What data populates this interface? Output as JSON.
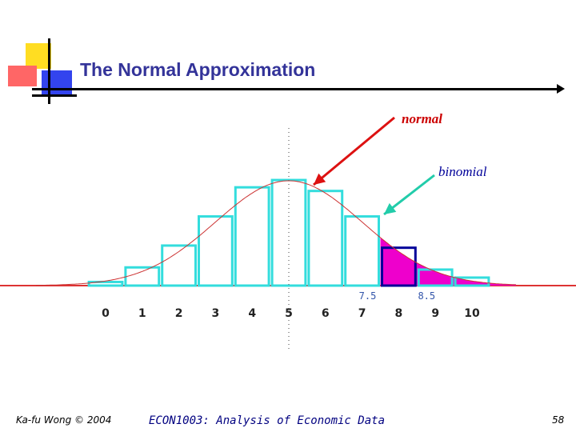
{
  "slide": {
    "title": "The Normal Approximation",
    "footer_author": "Ka-fu Wong © 2004",
    "footer_course": "ECON1003: Analysis of Economic Data",
    "page_number": "58",
    "colors": {
      "title": "#333399",
      "bar_outline": "#33DDDD",
      "normal_curve": "#CC3333",
      "tail_fill": "#EE00CC",
      "highlight_bar": "#000099",
      "baseline": "#DD3333",
      "normal_arrow": "#DD1111",
      "binomial_arrow": "#22CCAA"
    }
  },
  "chart_data": {
    "type": "bar",
    "categories": [
      "0",
      "1",
      "2",
      "3",
      "4",
      "5",
      "6",
      "7",
      "8",
      "9",
      "10"
    ],
    "x": [
      0,
      1,
      2,
      3,
      4,
      5,
      6,
      7,
      8,
      9,
      10
    ],
    "values": [
      0.5,
      2.5,
      5.5,
      9.5,
      13.5,
      14.5,
      13,
      9.5,
      5.2,
      2.2,
      1.1
    ],
    "xlim": [
      -0.5,
      10.5
    ],
    "ylim": [
      0,
      15
    ],
    "highlighted_bar": 8,
    "shaded_from": 7.5,
    "normal_curve": {
      "mean": 5,
      "sd": 2,
      "peak": 14.4
    },
    "mean_line_x": 5,
    "bound_labels": [
      "7.5",
      "8.5"
    ],
    "annotations": [
      {
        "label": "normal",
        "points_to": "normal curve"
      },
      {
        "label": "binomial",
        "points_to": "binomial bars"
      }
    ],
    "title": "",
    "xlabel": "",
    "ylabel": "",
    "grid": false
  }
}
